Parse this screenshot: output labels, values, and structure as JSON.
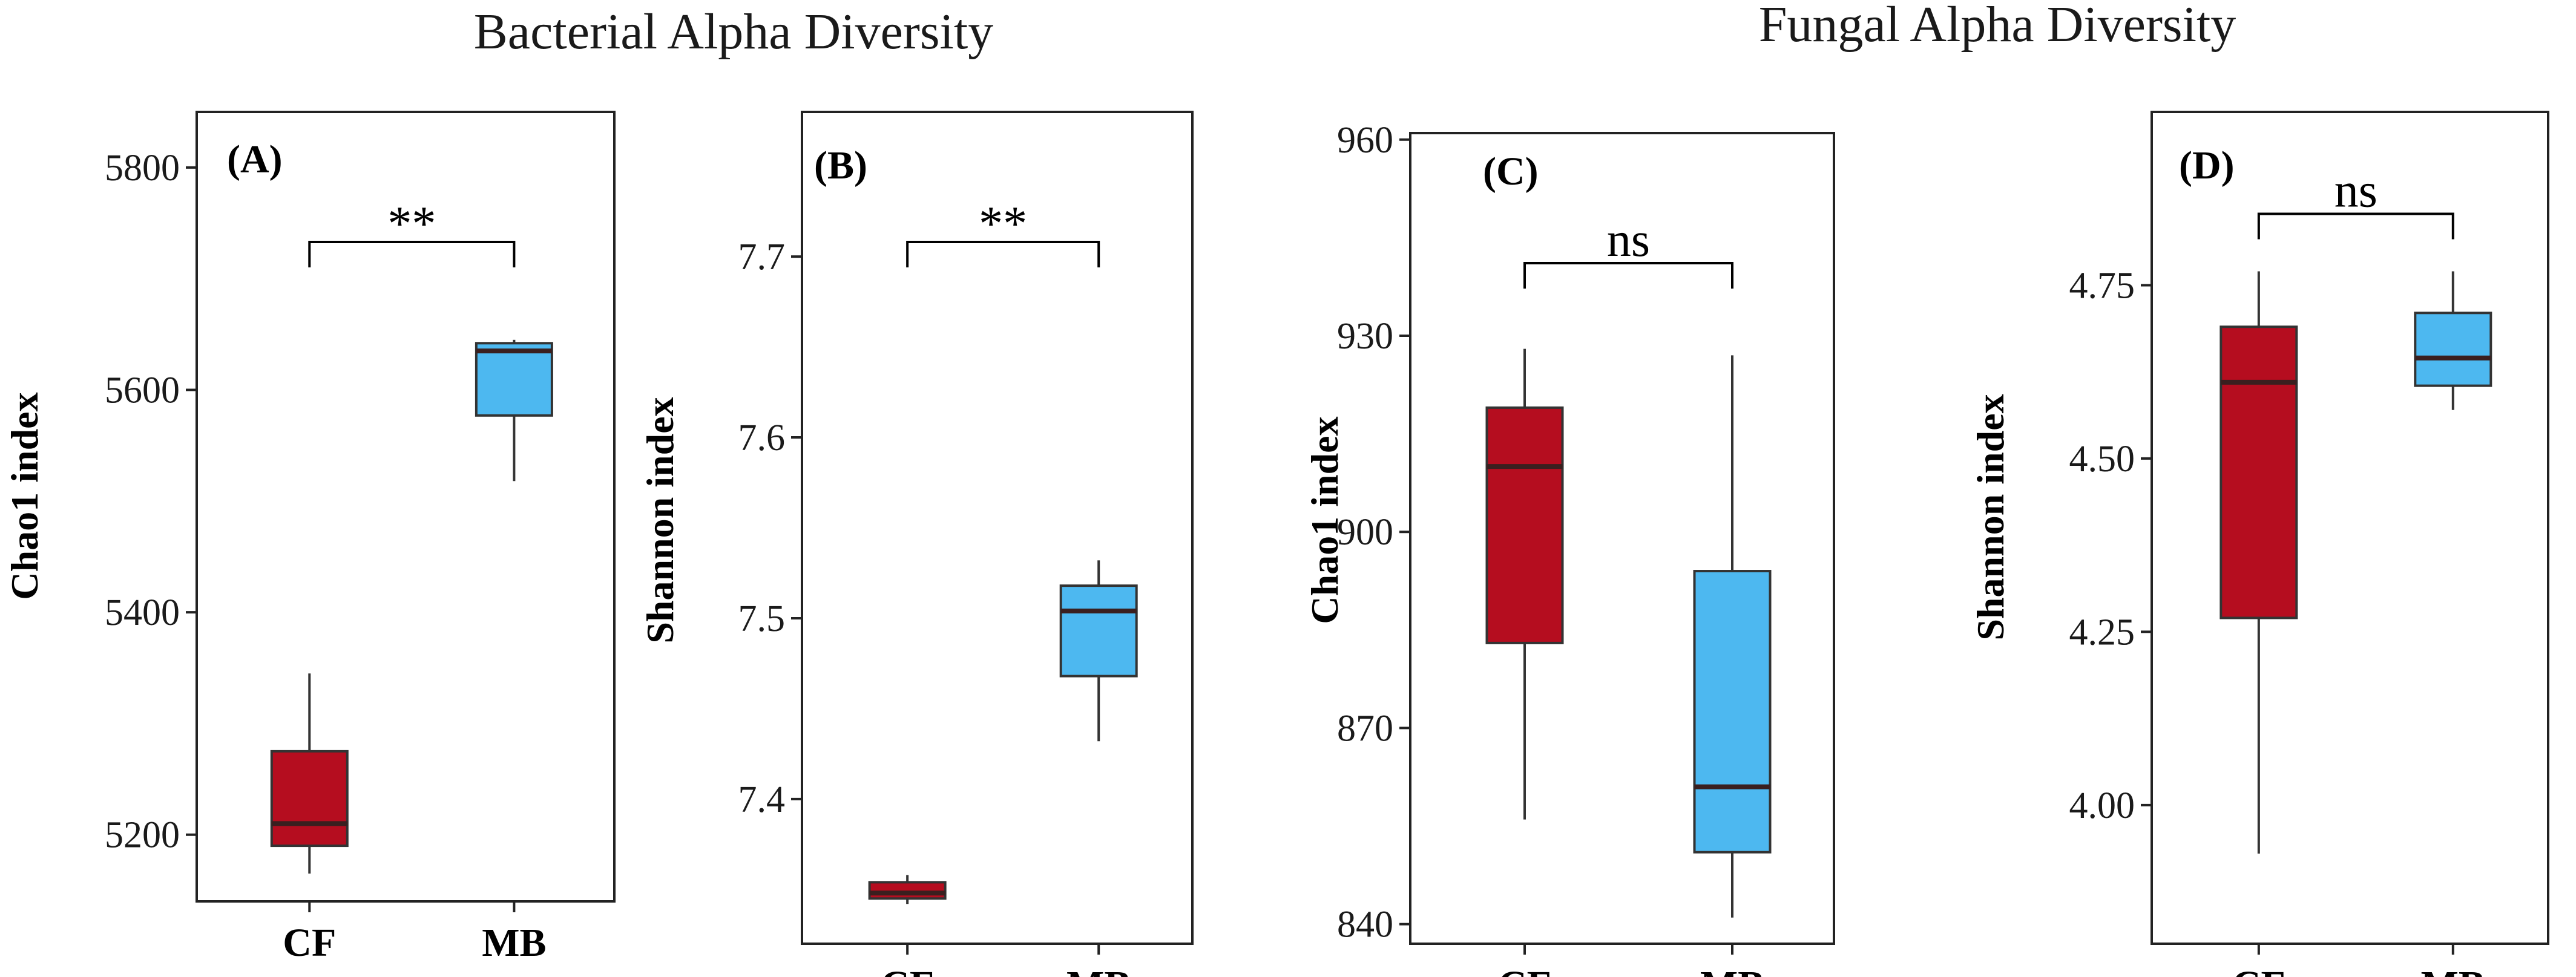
{
  "titles": {
    "bacterial": "Bacterial Alpha Diversity",
    "fungal": "Fungal Alpha Diversity"
  },
  "colors": {
    "CF": "#b50d1f",
    "MB": "#4db8f0",
    "median": "#3a1f1f",
    "outline": "#333333"
  },
  "chart_data": [
    {
      "type": "box",
      "panel": "(A)",
      "group": "Bacterial Alpha Diversity",
      "ylabel": "Chao1 index",
      "xlabel": "",
      "categories": [
        "CF",
        "MB"
      ],
      "ylim": [
        5140,
        5850
      ],
      "yticks": [
        5200,
        5400,
        5600,
        5800
      ],
      "boxes": [
        {
          "name": "CF",
          "min": 5165,
          "q1": 5190,
          "median": 5210,
          "q3": 5275,
          "max": 5345
        },
        {
          "name": "MB",
          "min": 5518,
          "q1": 5577,
          "median": 5635,
          "q3": 5642,
          "max": 5645
        }
      ],
      "significance": "**"
    },
    {
      "type": "box",
      "panel": "(B)",
      "group": "Bacterial Alpha Diversity",
      "ylabel": "Shannon index",
      "xlabel": "",
      "categories": [
        "CF",
        "MB"
      ],
      "ylim": [
        7.32,
        7.78
      ],
      "yticks": [
        7.4,
        7.5,
        7.6,
        7.7
      ],
      "boxes": [
        {
          "name": "CF",
          "min": 7.342,
          "q1": 7.345,
          "median": 7.348,
          "q3": 7.354,
          "max": 7.358
        },
        {
          "name": "MB",
          "min": 7.432,
          "q1": 7.468,
          "median": 7.504,
          "q3": 7.518,
          "max": 7.532
        }
      ],
      "significance": "**"
    },
    {
      "type": "box",
      "panel": "(C)",
      "group": "Fungal Alpha Diversity",
      "ylabel": "Chao1 index",
      "xlabel": "",
      "categories": [
        "CF",
        "MB"
      ],
      "ylim": [
        837,
        961
      ],
      "yticks": [
        840,
        870,
        900,
        930,
        960
      ],
      "boxes": [
        {
          "name": "CF",
          "min": 856,
          "q1": 883,
          "median": 910,
          "q3": 919,
          "max": 928
        },
        {
          "name": "MB",
          "min": 841,
          "q1": 851,
          "median": 861,
          "q3": 894,
          "max": 927
        }
      ],
      "significance": "ns"
    },
    {
      "type": "box",
      "panel": "(D)",
      "group": "Fungal Alpha Diversity",
      "ylabel": "Shannon index",
      "xlabel": "",
      "categories": [
        "CF",
        "MB"
      ],
      "ylim": [
        3.8,
        5.0
      ],
      "yticks": [
        4.0,
        4.25,
        4.5,
        4.75
      ],
      "ytick_labels": [
        "4.00",
        "4.25",
        "4.50",
        "4.75"
      ],
      "boxes": [
        {
          "name": "CF",
          "min": 3.93,
          "q1": 4.27,
          "median": 4.61,
          "q3": 4.69,
          "max": 4.77
        },
        {
          "name": "MB",
          "min": 4.57,
          "q1": 4.605,
          "median": 4.645,
          "q3": 4.71,
          "max": 4.77
        }
      ],
      "significance": "ns"
    }
  ]
}
